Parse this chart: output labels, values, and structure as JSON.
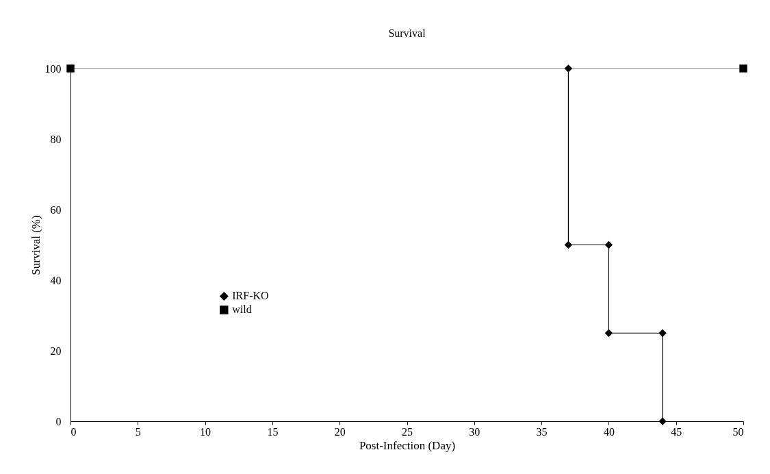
{
  "chart_data": {
    "type": "line",
    "title": "Survival",
    "xlabel": "Post-Infection (Day)",
    "ylabel": "Survival (%)",
    "series": [
      {
        "name": "IRF-KO",
        "color": "#000000",
        "marker": "diamond",
        "x": [
          37,
          37,
          40,
          40,
          44,
          44
        ],
        "values": [
          100,
          50,
          50,
          25,
          25,
          0
        ]
      },
      {
        "name": "wild",
        "color": "#000000",
        "marker": "square",
        "x": [
          0,
          50
        ],
        "values": [
          100,
          100
        ]
      }
    ],
    "xlim": [
      0,
      50
    ],
    "xticks": [
      0,
      5,
      10,
      15,
      20,
      25,
      30,
      35,
      40,
      45,
      50
    ],
    "ylim": [
      0,
      100
    ],
    "yticks": [
      0,
      20,
      40,
      60,
      80,
      100
    ],
    "grid": false,
    "legend": "center left",
    "line_style": "solid"
  }
}
